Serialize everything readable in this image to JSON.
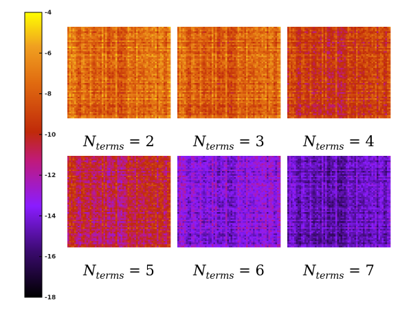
{
  "chart_data": {
    "type": "heatmap",
    "colormap": "black-purple-red-orange-yellow",
    "colorbar": {
      "min": -18,
      "max": -4,
      "ticks": [
        -4,
        -6,
        -8,
        -10,
        -12,
        -14,
        -16,
        -18
      ],
      "tick_labels": [
        "-4",
        "-6",
        "-8",
        "-10",
        "-12",
        "-14",
        "-16",
        "-18"
      ]
    },
    "grid_size": 60,
    "panels": [
      {
        "label_var": "N",
        "label_sub": "terms",
        "label_eq": " = ",
        "label_val": "2",
        "n_terms": 2,
        "mean": -7.6,
        "spread": 2.0
      },
      {
        "label_var": "N",
        "label_sub": "terms",
        "label_eq": " = ",
        "label_val": "3",
        "n_terms": 3,
        "mean": -7.9,
        "spread": 2.0
      },
      {
        "label_var": "N",
        "label_sub": "terms",
        "label_eq": " = ",
        "label_val": "4",
        "n_terms": 4,
        "mean": -9.4,
        "spread": 2.0
      },
      {
        "label_var": "N",
        "label_sub": "terms",
        "label_eq": " = ",
        "label_val": "5",
        "n_terms": 5,
        "mean": -10.6,
        "spread": 2.0
      },
      {
        "label_var": "N",
        "label_sub": "terms",
        "label_eq": " = ",
        "label_val": "6",
        "n_terms": 6,
        "mean": -13.6,
        "spread": 1.7
      },
      {
        "label_var": "N",
        "label_sub": "terms",
        "label_eq": " = ",
        "label_val": "7",
        "n_terms": 7,
        "mean": -14.6,
        "spread": 1.5
      }
    ]
  }
}
